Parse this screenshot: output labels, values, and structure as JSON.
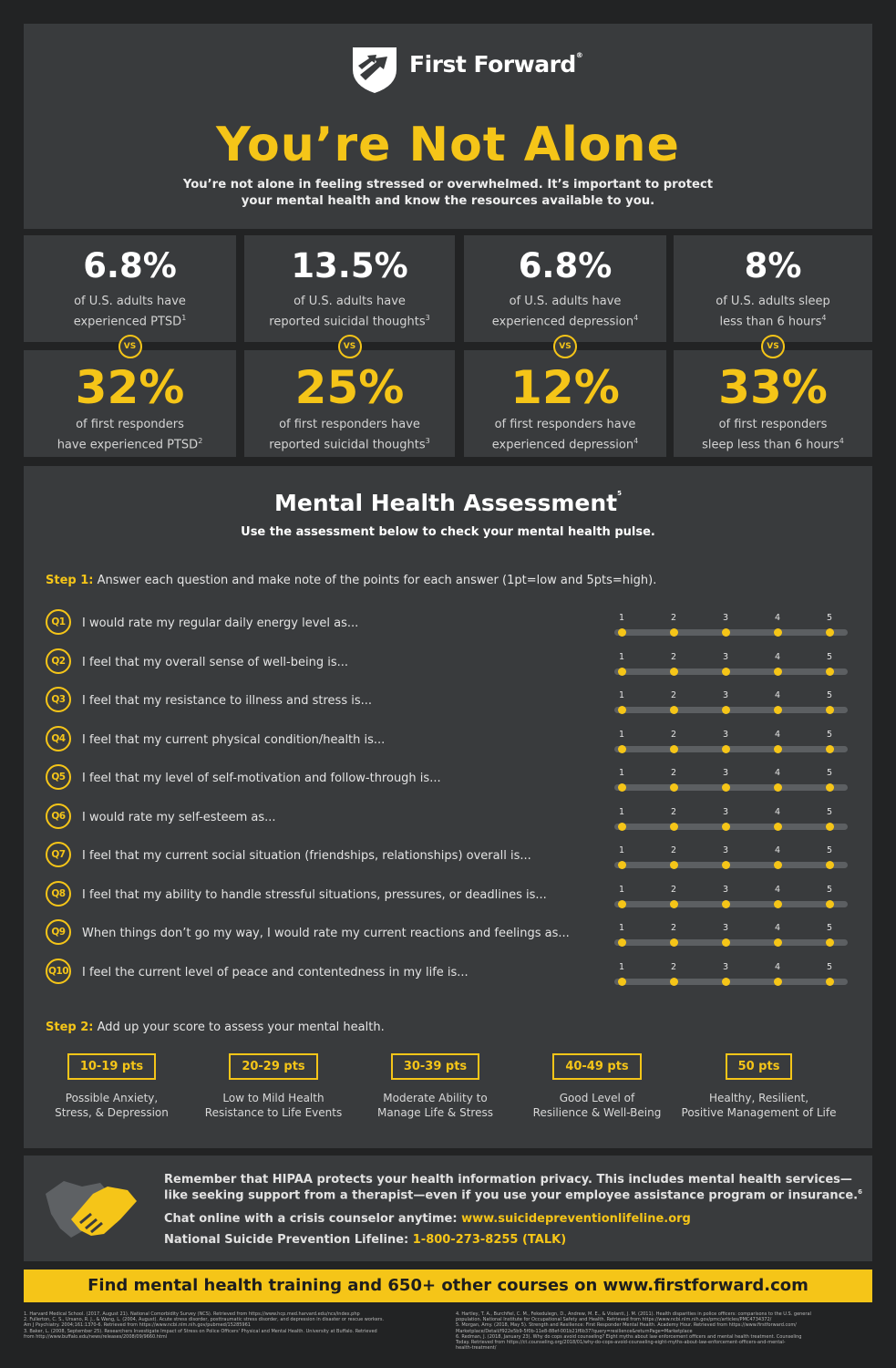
{
  "brand": {
    "name_first": "First",
    "name_second": "Forward",
    "mark": "®"
  },
  "header": {
    "headline": "You’re Not Alone",
    "sub1": "You’re not alone in feeling stressed or overwhelmed. It’s important to protect",
    "sub2": "your mental health and know the resources available to you."
  },
  "stats": [
    {
      "general_value": "6.8%",
      "general_line1": "of U.S. adults have",
      "general_line2": "experienced PTSD",
      "general_ref": "1",
      "vs": "VS",
      "fr_value": "32%",
      "fr_line1": "of first responders",
      "fr_line2": "have experienced PTSD",
      "fr_ref": "2"
    },
    {
      "general_value": "13.5%",
      "general_line1": "of U.S. adults have",
      "general_line2": "reported suicidal thoughts",
      "general_ref": "3",
      "vs": "VS",
      "fr_value": "25%",
      "fr_line1": "of first responders have",
      "fr_line2": "reported suicidal thoughts",
      "fr_ref": "3"
    },
    {
      "general_value": "6.8%",
      "general_line1": "of U.S. adults have",
      "general_line2": "experienced depression",
      "general_ref": "4",
      "vs": "VS",
      "fr_value": "12%",
      "fr_line1": "of first responders have",
      "fr_line2": "experienced depression",
      "fr_ref": "4"
    },
    {
      "general_value": "8%",
      "general_line1": "of U.S. adults sleep",
      "general_line2": "less than 6 hours",
      "general_ref": "4",
      "vs": "VS",
      "fr_value": "33%",
      "fr_line1": "of first responders",
      "fr_line2": "sleep less than 6 hours",
      "fr_ref": "4"
    }
  ],
  "assessment": {
    "title": "Mental Health Assessment",
    "title_ref": "5",
    "subtitle": "Use the assessment below to check your mental health pulse.",
    "step1_label": "Step 1:",
    "step1_text": "Answer each question and make note of the points for each answer (1pt=low and 5pts=high).",
    "scale_labels": [
      "1",
      "2",
      "3",
      "4",
      "5"
    ],
    "questions": [
      {
        "id": "Q1",
        "text": "I would rate my regular daily energy level as..."
      },
      {
        "id": "Q2",
        "text": "I feel that my overall sense of well-being is..."
      },
      {
        "id": "Q3",
        "text": "I feel that my resistance to illness and stress is..."
      },
      {
        "id": "Q4",
        "text": "I feel that my current physical condition/health is..."
      },
      {
        "id": "Q5",
        "text": "I feel that my level of self-motivation and follow-through is..."
      },
      {
        "id": "Q6",
        "text": "I would rate my self-esteem as..."
      },
      {
        "id": "Q7",
        "text": "I feel that my current social situation (friendships, relationships) overall is..."
      },
      {
        "id": "Q8",
        "text": "I feel that my ability to handle stressful situations, pressures, or deadlines is..."
      },
      {
        "id": "Q9",
        "text": "When things don’t go my way, I would rate my current reactions and feelings as..."
      },
      {
        "id": "Q10",
        "text": "I feel the current level of peace and contentedness in my life is..."
      }
    ],
    "step2_label": "Step 2:",
    "step2_text": "Add up your score to assess your mental health.",
    "scores": [
      {
        "range": "10-19 pts",
        "line1": "Possible Anxiety,",
        "line2": "Stress, & Depression"
      },
      {
        "range": "20-29 pts",
        "line1": "Low to Mild Health",
        "line2": "Resistance to Life Events"
      },
      {
        "range": "30-39 pts",
        "line1": "Moderate Ability to",
        "line2": "Manage Life & Stress"
      },
      {
        "range": "40-49 pts",
        "line1": "Good Level of",
        "line2": "Resilience & Well-Being"
      },
      {
        "range": "50 pts",
        "line1": "Healthy, Resilient,",
        "line2": "Positive Management of Life"
      }
    ]
  },
  "hipaa": {
    "line1": "Remember that HIPAA protects your health information privacy. This includes mental health services—",
    "line2": "like seeking support from a therapist—even if you use your employee assistance program or insurance.",
    "line2_ref": "6",
    "chat_label": "Chat online with a crisis counselor anytime:",
    "chat_link": "www.suicidepreventionlifeline.org",
    "lifeline_label": "National Suicide Prevention Lifeline:",
    "lifeline_phone": "1-800-273-8255 (TALK)"
  },
  "banner": "Find mental health training and 650+ other courses on www.firstforward.com",
  "footnotes_left": [
    "1. Harvard Medical School. (2017, August 21). National Comorbidity Survey (NCS). Retrieved from https://www.hcp.med.harvard.edu/ncs/index.php",
    "2. Fullerton, C. S., Ursano, R. J., & Wang, L. (2004, August). Acute stress disorder, posttraumatic stress disorder, and depression in disaster or rescue workers.",
    "    Am J Psychiatry. 2004;161:1370-6. Retrieved from https://www.ncbi.nlm.nih.gov/pubmed/15285961",
    "3. Baker, L. (2008, September 25). Researchers Investigate Impact of Stress on Police Officers' Physical and Mental Health. University at Buffalo. Retrieved",
    "    from http://www.buffalo.edu/news/releases/2008/09/9660.html"
  ],
  "footnotes_right": [
    "4. Hartley, T. A., Burchfiel, C. M., Fekedulegn, D., Andrew, M. E., & Violanti, J. M. (2011). Health disparities in police officers: comparisons to the U.S. general",
    "    population. National Institute for Occupational Safety and Health. Retrieved from https://www.ncbi.nlm.nih.gov/pmc/articles/PMC4734372/",
    "5. Morgan, Amy. (2018, May 5). Strength and Resilience: First Responder Mental Health. Academy Hour. Retrieved from https://www.firstforward.com/",
    "    Marketplace/Detail/f922e5b9-5f0b-11e8-88ef-001b21f6b37?query=resilience&returnPage=Marketplace",
    "6. Redman, J. (2018, January 23). Why do cops avoid counseling? Eight myths about law enforcement officers and mental health treatment. Counseling",
    "    Today. Retrieved from https://ct.counseling.org/2018/01/why-do-cops-avoid-counseling-eight-myths-about-law-enforcement-officers-and-mental-",
    "    health-treatment/"
  ],
  "colors": {
    "accent": "#f5c518",
    "panel": "#393b3d",
    "background": "#222324"
  }
}
